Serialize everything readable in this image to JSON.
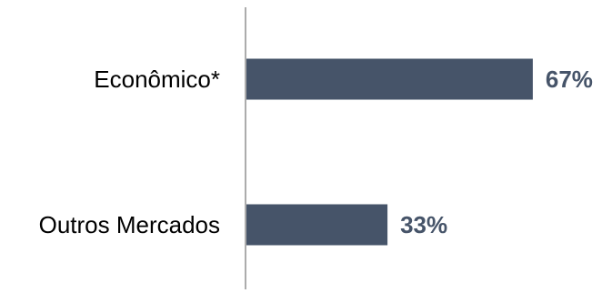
{
  "chart_data": {
    "type": "bar",
    "orientation": "horizontal",
    "categories": [
      "Econômico*",
      "Outros Mercados"
    ],
    "values": [
      67,
      33
    ],
    "value_labels": [
      "67%",
      "33%"
    ],
    "unit": "%",
    "xlim": [
      0,
      100
    ],
    "grid": false,
    "legend": "none",
    "title": "",
    "xlabel": "",
    "ylabel": ""
  },
  "colors": {
    "bar": "#465469",
    "value_text": "#465469",
    "axis": "#7f7f7f",
    "category_text": "#000000"
  }
}
